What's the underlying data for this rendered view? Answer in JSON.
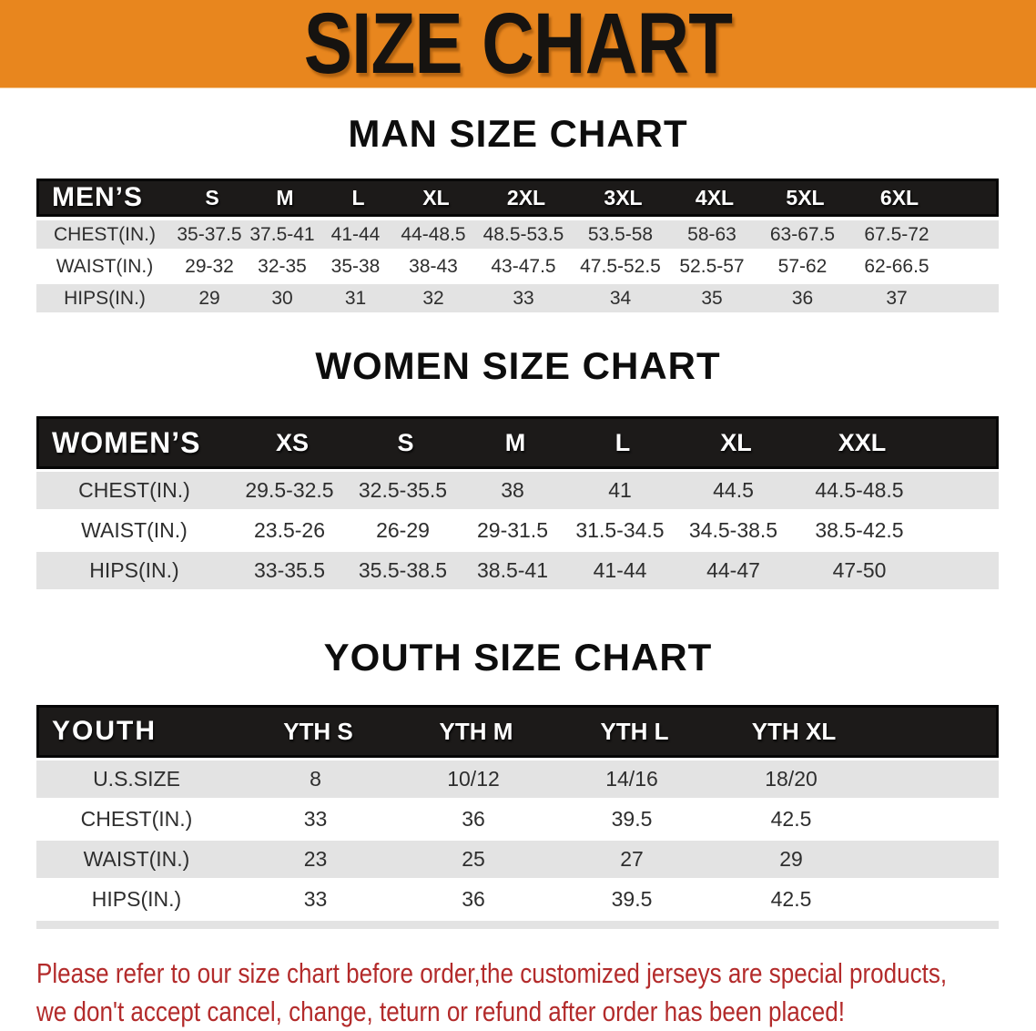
{
  "banner": {
    "title": "SIZE CHART"
  },
  "colors": {
    "banner_orange": "#E8861E",
    "table_header_black": "#1C1A19",
    "row_gray": "#E3E3E3",
    "disclaimer_red": "#B32B2B"
  },
  "men": {
    "title": "MAN SIZE CHART",
    "table": {
      "header": [
        "MEN’S",
        "S",
        "M",
        "L",
        "XL",
        "2XL",
        "3XL",
        "4XL",
        "5XL",
        "6XL"
      ],
      "rows": [
        [
          "CHEST(IN.)",
          "35-37.5",
          "37.5-41",
          "41-44",
          "44-48.5",
          "48.5-53.5",
          "53.5-58",
          "58-63",
          "63-67.5",
          "67.5-72"
        ],
        [
          "WAIST(IN.)",
          "29-32",
          "32-35",
          "35-38",
          "38-43",
          "43-47.5",
          "47.5-52.5",
          "52.5-57",
          "57-62",
          "62-66.5"
        ],
        [
          "HIPS(IN.)",
          "29",
          "30",
          "31",
          "32",
          "33",
          "34",
          "35",
          "36",
          "37"
        ]
      ]
    }
  },
  "women": {
    "title": "WOMEN SIZE CHART",
    "table": {
      "header": [
        "WOMEN’S",
        "XS",
        "S",
        "M",
        "L",
        "XL",
        "XXL"
      ],
      "rows": [
        [
          "CHEST(IN.)",
          "29.5-32.5",
          "32.5-35.5",
          "38",
          "41",
          "44.5",
          "44.5-48.5"
        ],
        [
          "WAIST(IN.)",
          "23.5-26",
          "26-29",
          "29-31.5",
          "31.5-34.5",
          "34.5-38.5",
          "38.5-42.5"
        ],
        [
          "HIPS(IN.)",
          "33-35.5",
          "35.5-38.5",
          "38.5-41",
          "41-44",
          "44-47",
          "47-50"
        ]
      ]
    }
  },
  "youth": {
    "title": "YOUTH SIZE CHART",
    "table": {
      "header": [
        "YOUTH",
        "YTH S",
        "YTH M",
        "YTH L",
        "YTH XL"
      ],
      "rows": [
        [
          "U.S.SIZE",
          "8",
          "10/12",
          "14/16",
          "18/20"
        ],
        [
          "CHEST(IN.)",
          "33",
          "36",
          "39.5",
          "42.5"
        ],
        [
          "WAIST(IN.)",
          "23",
          "25",
          "27",
          "29"
        ],
        [
          "HIPS(IN.)",
          "33",
          "36",
          "39.5",
          "42.5"
        ]
      ]
    }
  },
  "disclaimer": {
    "line1": "Please refer to our size chart before order,the customized jerseys are special products,",
    "line2": "we don't accept cancel, change, teturn or refund after order has been placed!"
  }
}
